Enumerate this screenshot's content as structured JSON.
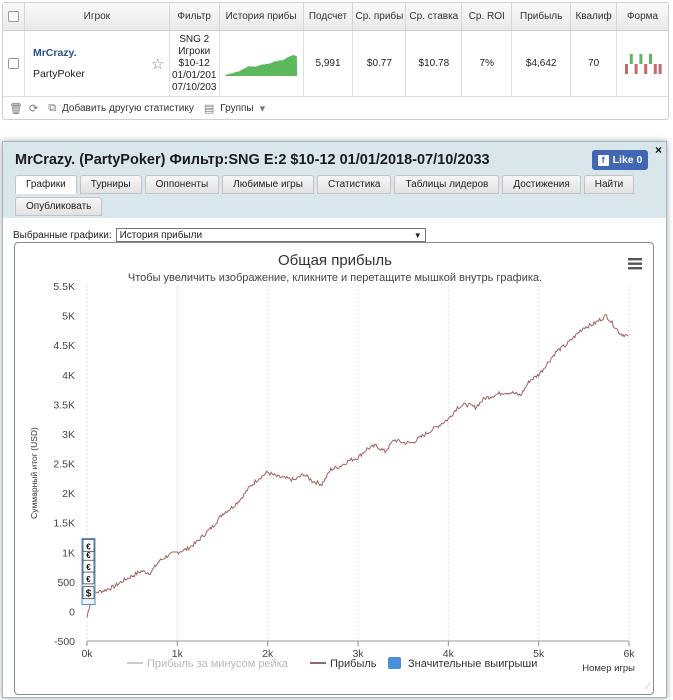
{
  "table": {
    "headers": [
      "Игрок",
      "Фильтр",
      "История прибы",
      "Подсчет",
      "Ср. прибы",
      "Ср. ставка",
      "Ср. ROI",
      "Прибыль",
      "Квалиф",
      "Форма"
    ],
    "row": {
      "player_name": "MrCrazy.",
      "player_site": "PartyPoker",
      "filter_lines": [
        "SNG 2",
        "Игроки",
        "$10-12",
        "01/01/201",
        "07/10/203"
      ],
      "count": "5,991",
      "avg_profit": "$0.77",
      "avg_stake": "$10.78",
      "avg_roi": "7%",
      "profit": "$4,642",
      "qualif": "70",
      "form_results": [
        -1,
        1,
        -1,
        1,
        -1,
        1,
        -1,
        -1
      ]
    },
    "footer": {
      "add_stat": "Добавить другую статистику",
      "groups": "Группы"
    }
  },
  "panel": {
    "title": "MrCrazy. (PartyPoker) Фильтр:SNG E:2 $10-12 01/01/2018-07/10/2033",
    "like_label": "Like 0",
    "close_label": "×",
    "tabs": [
      "Графики",
      "Турниры",
      "Оппоненты",
      "Любимые игры",
      "Статистика",
      "Таблицы лидеров",
      "Достижения",
      "Найти",
      "Опубликовать"
    ],
    "active_tab": "Графики",
    "select_label": "Выбранные графики:",
    "select_value": "История прибыли"
  },
  "colors": {
    "profit_line": "#a0625f",
    "profit_minus_rake": "#cccccc",
    "big_wins": "#4a8fd9",
    "sparkline_fill": "#5cb85c",
    "form_win": "#5cb85c",
    "form_loss": "#c26b6b"
  },
  "chart_data": {
    "type": "line",
    "title": "Общая прибыль",
    "subtitle": "Чтобы увеличить изображение, кликните и перетащите мышкой внутрь графика.",
    "xlabel": "Номер игры",
    "ylabel": "Суммарный итог (USD)",
    "xlim": [
      0,
      6000
    ],
    "ylim": [
      -500,
      5500
    ],
    "x_ticks": [
      "0k",
      "1k",
      "2k",
      "3k",
      "4k",
      "5k",
      "6k"
    ],
    "y_ticks": [
      "-500",
      "0",
      "500",
      "1K",
      "1.5K",
      "2K",
      "2.5K",
      "3K",
      "3.5K",
      "4K",
      "4.5K",
      "5K",
      "5.5K"
    ],
    "grid": "vertical-dotted",
    "legend": "bottom",
    "series": [
      {
        "name": "Прибыль за минусом рейка",
        "values": []
      },
      {
        "name": "Прибыль",
        "x": [
          0,
          50,
          100,
          200,
          300,
          400,
          500,
          600,
          700,
          800,
          900,
          1000,
          1100,
          1200,
          1300,
          1400,
          1500,
          1600,
          1700,
          1800,
          1900,
          2000,
          2100,
          2200,
          2300,
          2400,
          2500,
          2600,
          2700,
          2800,
          2900,
          3000,
          3100,
          3200,
          3300,
          3400,
          3500,
          3600,
          3700,
          3800,
          3900,
          4000,
          4100,
          4200,
          4300,
          4400,
          4500,
          4600,
          4700,
          4800,
          4900,
          5000,
          5100,
          5200,
          5300,
          5400,
          5500,
          5600,
          5700,
          5750,
          5800,
          5900,
          5991
        ],
        "values": [
          -100,
          250,
          320,
          360,
          420,
          520,
          600,
          680,
          650,
          850,
          950,
          1000,
          1050,
          1150,
          1300,
          1450,
          1650,
          1750,
          1900,
          2100,
          2250,
          2350,
          2280,
          2250,
          2220,
          2320,
          2200,
          2150,
          2400,
          2450,
          2550,
          2600,
          2750,
          2800,
          2700,
          2900,
          2850,
          2850,
          2950,
          3050,
          3150,
          3250,
          3450,
          3500,
          3450,
          3600,
          3650,
          3700,
          3700,
          3650,
          3900,
          4000,
          4200,
          4400,
          4500,
          4650,
          4800,
          4850,
          4950,
          5000,
          4900,
          4700,
          4650
        ]
      },
      {
        "name": "Значительные выигрыши",
        "markers": [
          "$",
          "€",
          "€",
          "€",
          "€"
        ]
      }
    ]
  }
}
